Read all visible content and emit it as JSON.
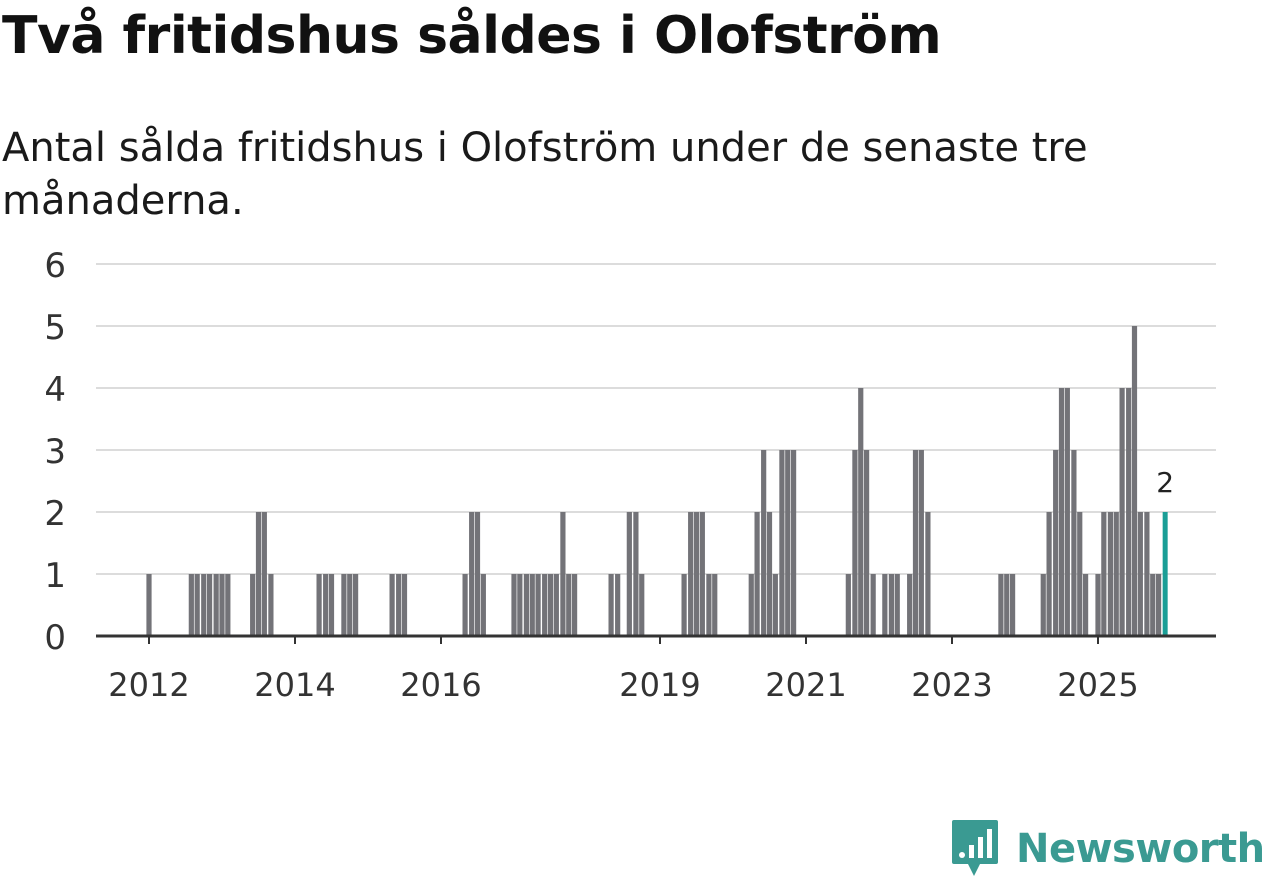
{
  "header": {
    "title": "Två fritidshus såldes i Olofström",
    "subtitle": "Antal sålda fritidshus i Olofström under de senaste tre månaderna."
  },
  "brand": {
    "name": "Newsworthy",
    "color": "#3a9a92"
  },
  "colors": {
    "bar": "#737378",
    "highlight": "#1a9e96",
    "grid": "#dcdcdc",
    "axis": "#333333",
    "text": "#333333"
  },
  "chart_data": {
    "type": "bar",
    "title": "Två fritidshus såldes i Olofström",
    "xlabel": "",
    "ylabel": "",
    "ylim": [
      0,
      6
    ],
    "yticks": [
      0,
      1,
      2,
      3,
      4,
      5,
      6
    ],
    "xticks": [
      {
        "label": "2012",
        "year": 2012
      },
      {
        "label": "2014",
        "year": 2014
      },
      {
        "label": "2016",
        "year": 2016
      },
      {
        "label": "2019",
        "year": 2019
      },
      {
        "label": "2021",
        "year": 2021
      },
      {
        "label": "2023",
        "year": 2023
      },
      {
        "label": "2025",
        "year": 2025
      }
    ],
    "series": [
      {
        "name": "Antal sålda fritidshus",
        "data": [
          {
            "t": 2012.0,
            "v": 1
          },
          {
            "t": 2012.58,
            "v": 1
          },
          {
            "t": 2012.66,
            "v": 1
          },
          {
            "t": 2012.75,
            "v": 1
          },
          {
            "t": 2012.83,
            "v": 1
          },
          {
            "t": 2012.92,
            "v": 1
          },
          {
            "t": 2013.0,
            "v": 1
          },
          {
            "t": 2013.08,
            "v": 1
          },
          {
            "t": 2013.42,
            "v": 1
          },
          {
            "t": 2013.5,
            "v": 2
          },
          {
            "t": 2013.58,
            "v": 2
          },
          {
            "t": 2013.67,
            "v": 1
          },
          {
            "t": 2014.33,
            "v": 1
          },
          {
            "t": 2014.42,
            "v": 1
          },
          {
            "t": 2014.5,
            "v": 1
          },
          {
            "t": 2014.67,
            "v": 1
          },
          {
            "t": 2014.75,
            "v": 1
          },
          {
            "t": 2014.83,
            "v": 1
          },
          {
            "t": 2015.33,
            "v": 1
          },
          {
            "t": 2015.42,
            "v": 1
          },
          {
            "t": 2015.5,
            "v": 1
          },
          {
            "t": 2016.33,
            "v": 1
          },
          {
            "t": 2016.42,
            "v": 2
          },
          {
            "t": 2016.5,
            "v": 2
          },
          {
            "t": 2016.58,
            "v": 1
          },
          {
            "t": 2017.0,
            "v": 1
          },
          {
            "t": 2017.08,
            "v": 1
          },
          {
            "t": 2017.17,
            "v": 1
          },
          {
            "t": 2017.25,
            "v": 1
          },
          {
            "t": 2017.33,
            "v": 1
          },
          {
            "t": 2017.42,
            "v": 1
          },
          {
            "t": 2017.5,
            "v": 1
          },
          {
            "t": 2017.58,
            "v": 1
          },
          {
            "t": 2017.67,
            "v": 2
          },
          {
            "t": 2017.75,
            "v": 1
          },
          {
            "t": 2017.83,
            "v": 1
          },
          {
            "t": 2018.33,
            "v": 1
          },
          {
            "t": 2018.42,
            "v": 1
          },
          {
            "t": 2018.58,
            "v": 2
          },
          {
            "t": 2018.67,
            "v": 2
          },
          {
            "t": 2018.75,
            "v": 1
          },
          {
            "t": 2019.33,
            "v": 1
          },
          {
            "t": 2019.42,
            "v": 2
          },
          {
            "t": 2019.5,
            "v": 2
          },
          {
            "t": 2019.58,
            "v": 2
          },
          {
            "t": 2019.67,
            "v": 1
          },
          {
            "t": 2019.75,
            "v": 1
          },
          {
            "t": 2020.25,
            "v": 1
          },
          {
            "t": 2020.33,
            "v": 2
          },
          {
            "t": 2020.42,
            "v": 3
          },
          {
            "t": 2020.5,
            "v": 2
          },
          {
            "t": 2020.58,
            "v": 1
          },
          {
            "t": 2020.67,
            "v": 3
          },
          {
            "t": 2020.75,
            "v": 3
          },
          {
            "t": 2020.83,
            "v": 3
          },
          {
            "t": 2021.58,
            "v": 1
          },
          {
            "t": 2021.67,
            "v": 3
          },
          {
            "t": 2021.75,
            "v": 4
          },
          {
            "t": 2021.83,
            "v": 3
          },
          {
            "t": 2021.92,
            "v": 1
          },
          {
            "t": 2022.08,
            "v": 1
          },
          {
            "t": 2022.17,
            "v": 1
          },
          {
            "t": 2022.25,
            "v": 1
          },
          {
            "t": 2022.42,
            "v": 1
          },
          {
            "t": 2022.5,
            "v": 3
          },
          {
            "t": 2022.58,
            "v": 3
          },
          {
            "t": 2022.67,
            "v": 2
          },
          {
            "t": 2023.67,
            "v": 1
          },
          {
            "t": 2023.75,
            "v": 1
          },
          {
            "t": 2023.83,
            "v": 1
          },
          {
            "t": 2024.25,
            "v": 1
          },
          {
            "t": 2024.33,
            "v": 2
          },
          {
            "t": 2024.42,
            "v": 3
          },
          {
            "t": 2024.5,
            "v": 4
          },
          {
            "t": 2024.58,
            "v": 4
          },
          {
            "t": 2024.67,
            "v": 3
          },
          {
            "t": 2024.75,
            "v": 2
          },
          {
            "t": 2024.83,
            "v": 1
          },
          {
            "t": 2025.0,
            "v": 1
          },
          {
            "t": 2025.08,
            "v": 2
          },
          {
            "t": 2025.17,
            "v": 2
          },
          {
            "t": 2025.25,
            "v": 2
          },
          {
            "t": 2025.33,
            "v": 4
          },
          {
            "t": 2025.42,
            "v": 4
          },
          {
            "t": 2025.5,
            "v": 5
          },
          {
            "t": 2025.58,
            "v": 2
          },
          {
            "t": 2025.67,
            "v": 2
          },
          {
            "t": 2025.75,
            "v": 1
          },
          {
            "t": 2025.83,
            "v": 1
          }
        ]
      }
    ],
    "highlight": {
      "t": 2025.92,
      "v": 2,
      "label": "2"
    }
  }
}
